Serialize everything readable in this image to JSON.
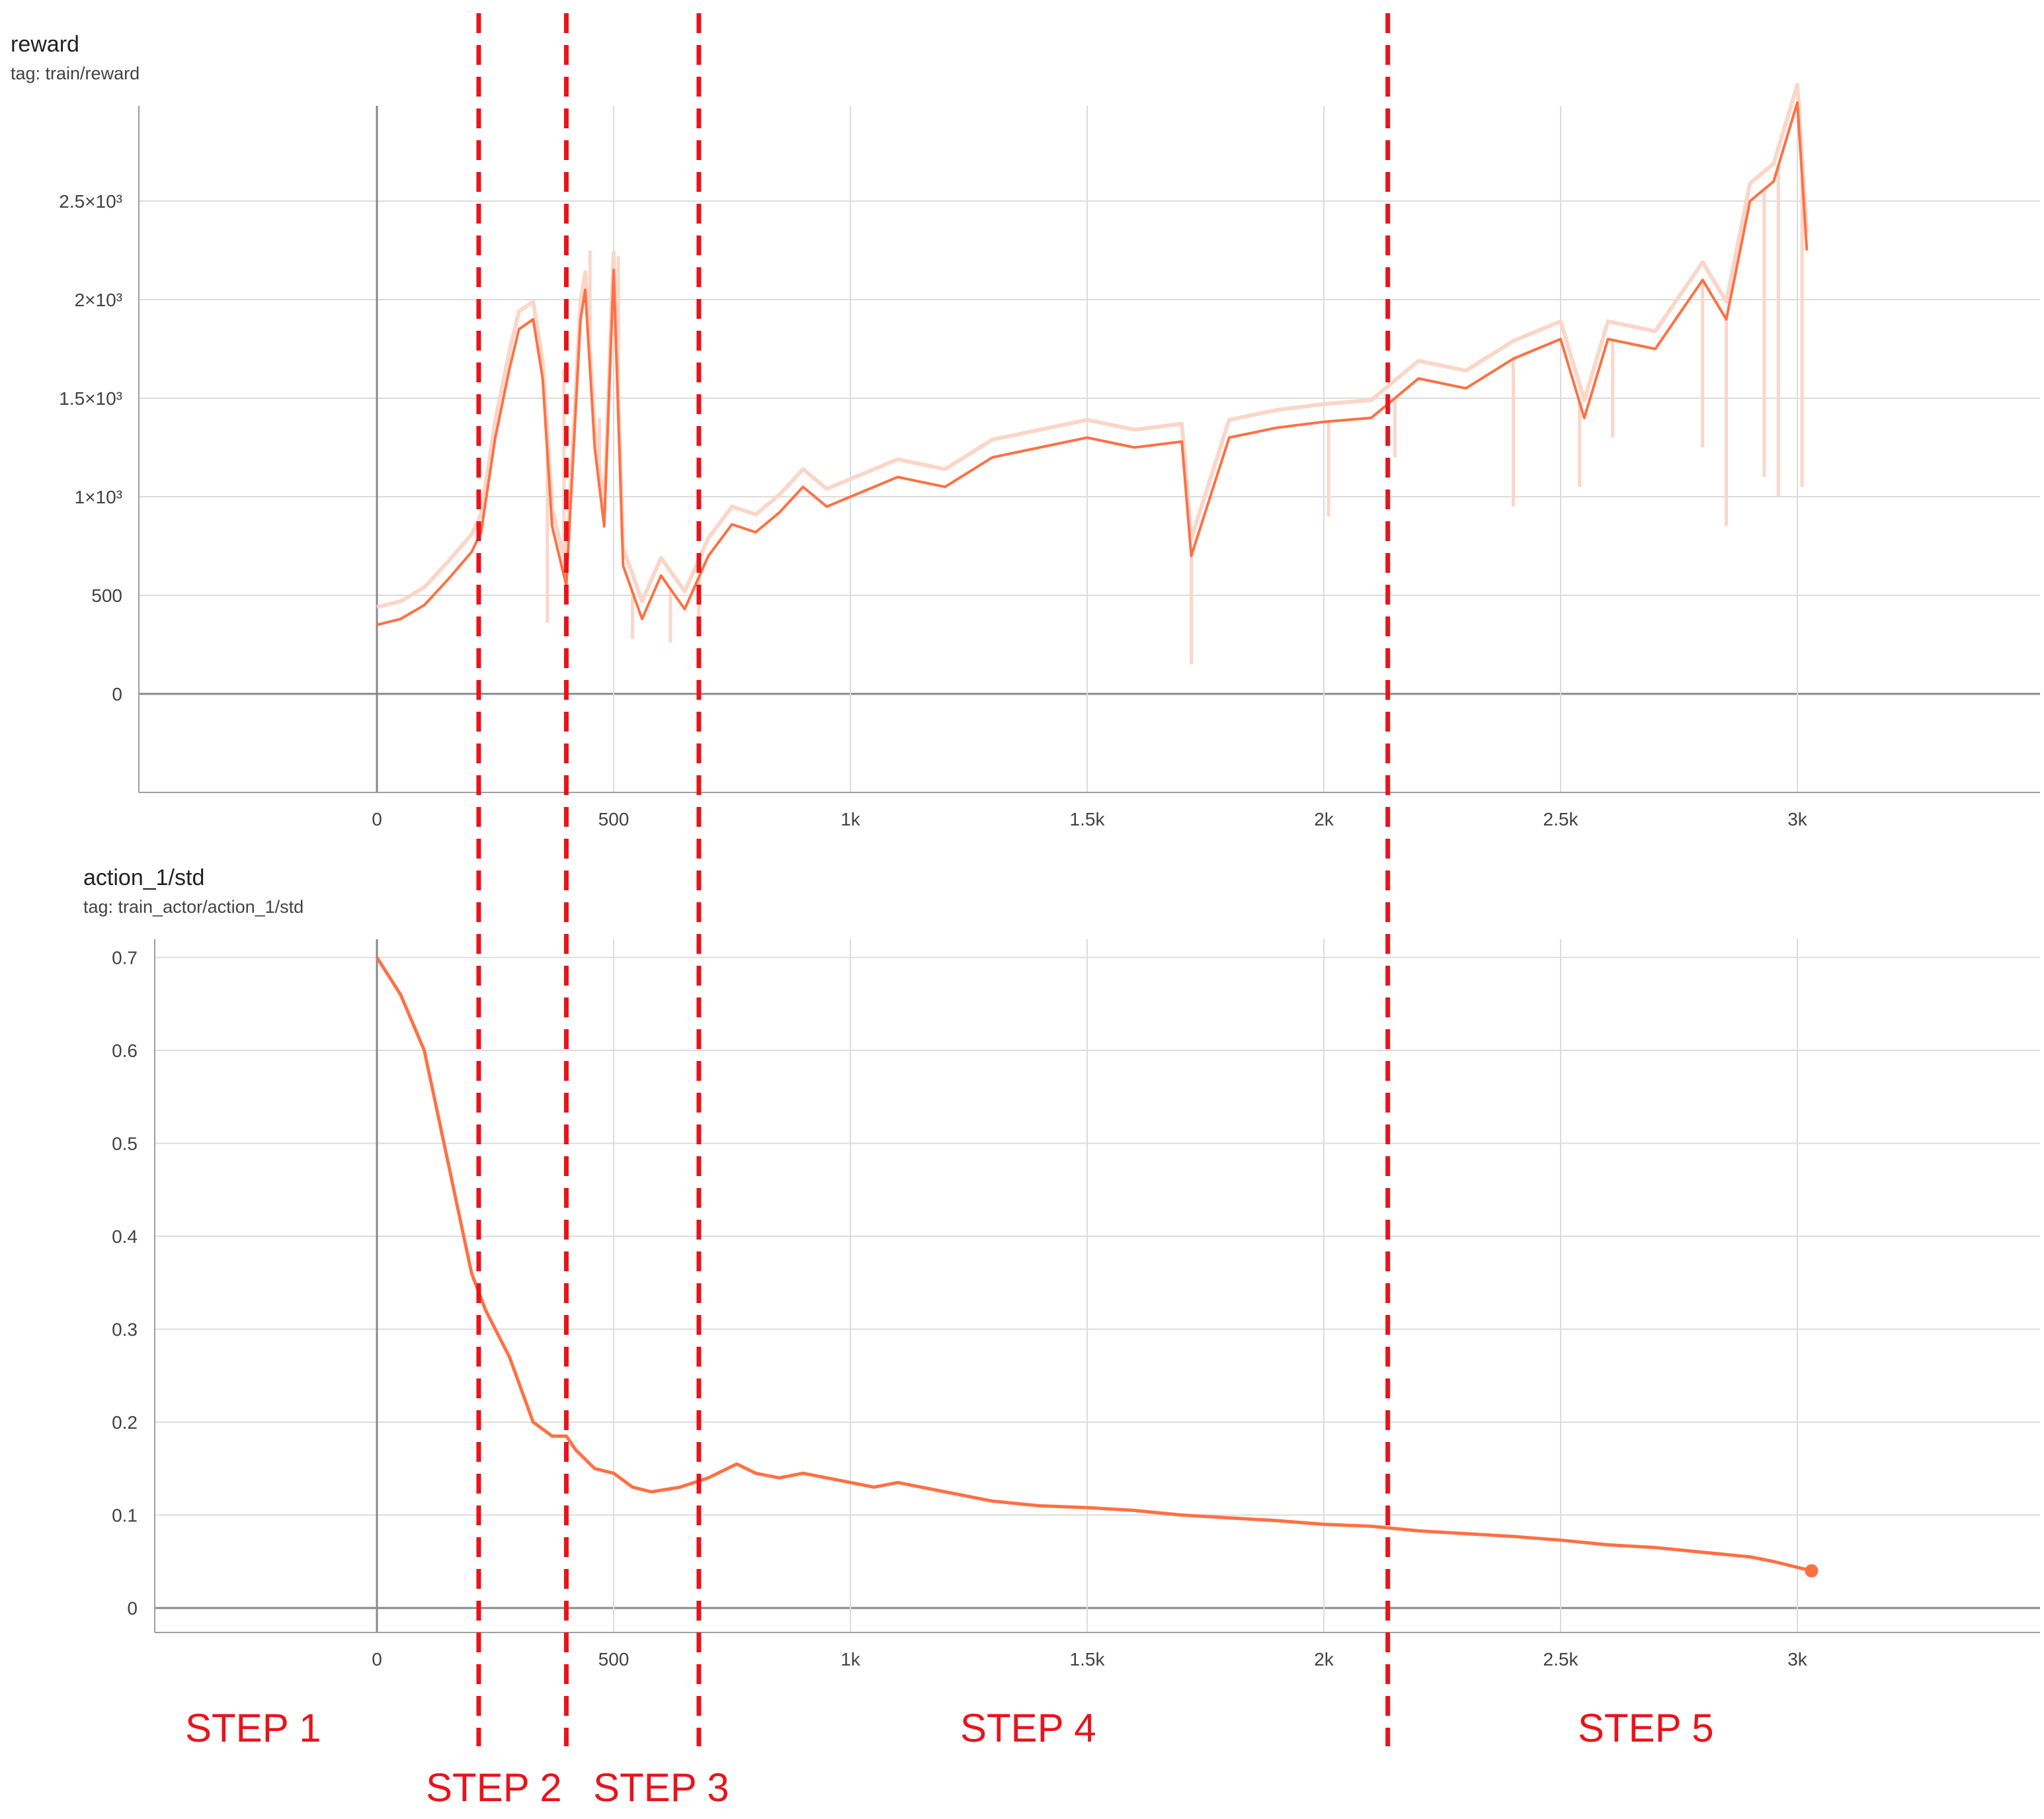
{
  "colors": {
    "series": "#ff7043",
    "series_light": "#fbd6c8",
    "grid": "#dcdcdc",
    "axis": "#9e9e9e",
    "zero_axis": "#888888",
    "divider": "#e8141b",
    "tick_text": "#424242"
  },
  "chart_data": [
    {
      "type": "line",
      "title": "reward",
      "subtitle": "tag: train/reward",
      "xlabel": "",
      "ylabel": "",
      "xlim": [
        -500,
        3500
      ],
      "ylim": [
        -500,
        3000
      ],
      "xticks": [
        0,
        500,
        1000,
        1500,
        2000,
        2500,
        3000
      ],
      "xtick_labels": [
        "0",
        "500",
        "1k",
        "1.5k",
        "2k",
        "2.5k",
        "3k"
      ],
      "yticks": [
        0,
        500,
        1000,
        1500,
        2000,
        2500
      ],
      "ytick_labels": [
        "0",
        "500",
        "1×10³",
        "1.5×10³",
        "2×10³",
        "2.5×10³"
      ],
      "grid": true,
      "series": [
        {
          "x": [
            0,
            50,
            100,
            150,
            200,
            220,
            250,
            280,
            300,
            330,
            350,
            370,
            400,
            430,
            440,
            460,
            480,
            500,
            520,
            560,
            600,
            650,
            700,
            750,
            800,
            850,
            900,
            950,
            1000,
            1100,
            1200,
            1300,
            1400,
            1500,
            1600,
            1700,
            1720,
            1800,
            1900,
            2000,
            2100,
            2200,
            2300,
            2400,
            2500,
            2550,
            2600,
            2700,
            2800,
            2850,
            2900,
            2950,
            3000,
            3020
          ],
          "y": [
            350,
            380,
            450,
            580,
            720,
            820,
            1300,
            1650,
            1850,
            1900,
            1600,
            850,
            550,
            1900,
            2050,
            1250,
            850,
            2150,
            650,
            380,
            600,
            430,
            700,
            860,
            820,
            920,
            1050,
            950,
            1000,
            1100,
            1050,
            1200,
            1250,
            1300,
            1250,
            1280,
            700,
            1300,
            1350,
            1380,
            1400,
            1600,
            1550,
            1700,
            1800,
            1400,
            1800,
            1750,
            2100,
            1900,
            2500,
            2600,
            3000,
            2250
          ]
        },
        {
          "x": [
            360,
            395,
            450,
            470,
            510,
            540,
            620,
            680,
            1720,
            2010,
            2150,
            2400,
            2540,
            2610,
            2800,
            2850,
            2930,
            2960,
            3010
          ],
          "y": [
            360,
            1650,
            2250,
            1400,
            2220,
            280,
            260,
            330,
            150,
            900,
            1200,
            950,
            1050,
            1300,
            1250,
            850,
            1100,
            1000,
            1050
          ]
        }
      ]
    },
    {
      "type": "line",
      "title": "action_1/std",
      "subtitle": "tag: train_actor/action_1/std",
      "xlabel": "",
      "ylabel": "",
      "xlim": [
        -500,
        3500
      ],
      "ylim": [
        -0.03,
        0.72
      ],
      "xticks": [
        0,
        500,
        1000,
        1500,
        2000,
        2500,
        3000
      ],
      "xtick_labels": [
        "0",
        "500",
        "1k",
        "1.5k",
        "2k",
        "2.5k",
        "3k"
      ],
      "yticks": [
        0,
        0.1,
        0.2,
        0.3,
        0.4,
        0.5,
        0.6,
        0.7
      ],
      "ytick_labels": [
        "0",
        "0.1",
        "0.2",
        "0.3",
        "0.4",
        "0.5",
        "0.6",
        "0.7"
      ],
      "grid": true,
      "series": [
        {
          "x": [
            0,
            50,
            100,
            150,
            200,
            230,
            280,
            330,
            370,
            400,
            420,
            460,
            500,
            540,
            580,
            640,
            700,
            760,
            800,
            850,
            900,
            950,
            1000,
            1050,
            1100,
            1200,
            1300,
            1400,
            1500,
            1600,
            1700,
            1800,
            1900,
            2000,
            2100,
            2200,
            2300,
            2400,
            2500,
            2600,
            2700,
            2800,
            2900,
            2950,
            3030
          ],
          "y": [
            0.7,
            0.66,
            0.6,
            0.48,
            0.36,
            0.32,
            0.27,
            0.2,
            0.185,
            0.185,
            0.17,
            0.15,
            0.145,
            0.13,
            0.125,
            0.13,
            0.14,
            0.155,
            0.145,
            0.14,
            0.145,
            0.14,
            0.135,
            0.13,
            0.135,
            0.125,
            0.115,
            0.11,
            0.108,
            0.105,
            0.1,
            0.097,
            0.094,
            0.09,
            0.088,
            0.083,
            0.08,
            0.077,
            0.073,
            0.068,
            0.065,
            0.06,
            0.055,
            0.05,
            0.04
          ]
        }
      ]
    }
  ],
  "dividers_x": [
    215,
    400,
    680,
    2135
  ],
  "step_labels": {
    "s1": "STEP 1",
    "s2": "STEP 2",
    "s3": "STEP 3",
    "s4": "STEP 4",
    "s5": "STEP 5"
  }
}
